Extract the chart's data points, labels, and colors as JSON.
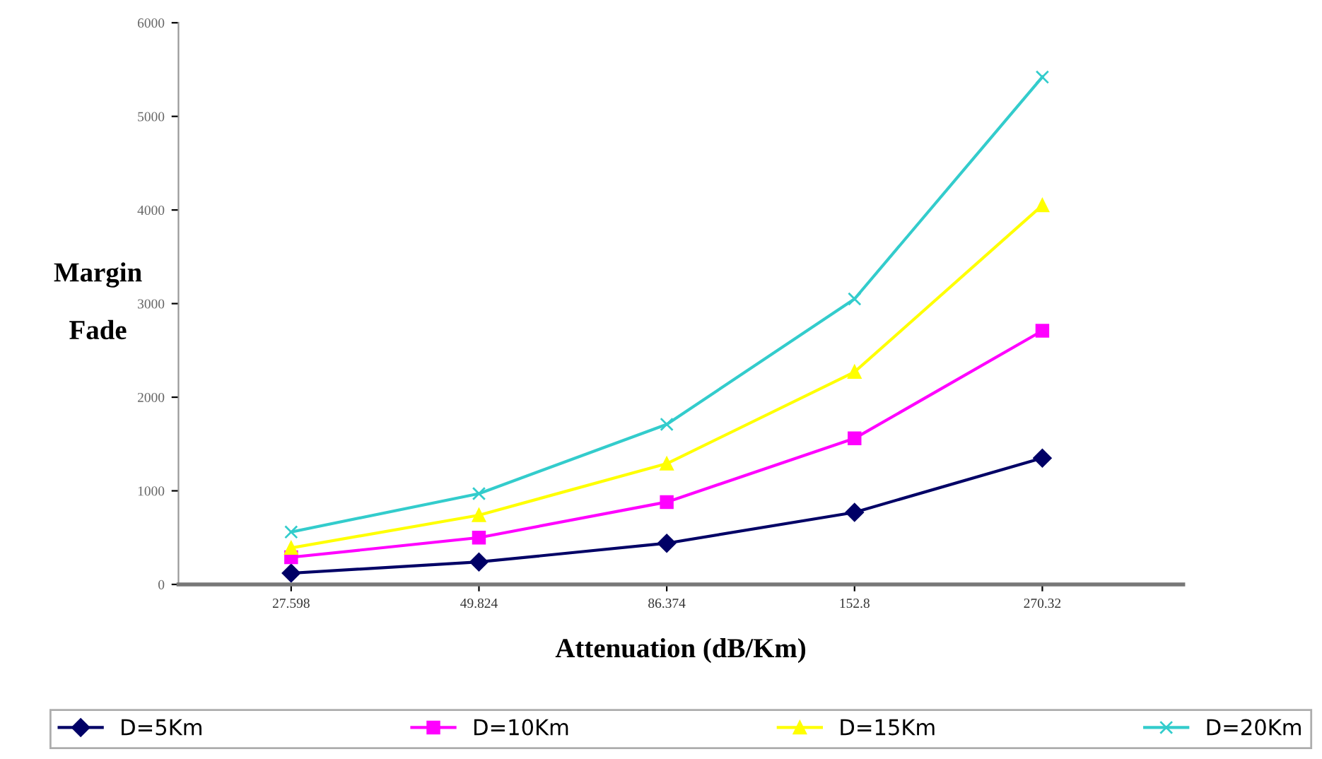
{
  "chart_data": {
    "type": "line",
    "xlabel": "Attenuation (dB/Km)",
    "ylabel": "Margin\n\nFade",
    "categories": [
      "27.598",
      "49.824",
      "86.374",
      "152.8",
      "270.32"
    ],
    "series": [
      {
        "name": "D=5Km",
        "color": "#000066",
        "marker": "diamond",
        "values": [
          120,
          240,
          440,
          770,
          1350
        ]
      },
      {
        "name": "D=10Km",
        "color": "#ff00ff",
        "marker": "square",
        "values": [
          290,
          500,
          880,
          1560,
          2710
        ]
      },
      {
        "name": "D=15Km",
        "color": "#ffff00",
        "marker": "triangle",
        "values": [
          390,
          740,
          1290,
          2270,
          4050
        ]
      },
      {
        "name": "D=20Km",
        "color": "#33cccc",
        "marker": "cross",
        "values": [
          560,
          970,
          1710,
          3050,
          5420
        ]
      }
    ],
    "ylim": [
      0,
      6000
    ],
    "yticks": [
      0,
      1000,
      2000,
      3000,
      4000,
      5000,
      6000
    ],
    "grid": false,
    "legend": "bottom",
    "line_style": "solid"
  }
}
